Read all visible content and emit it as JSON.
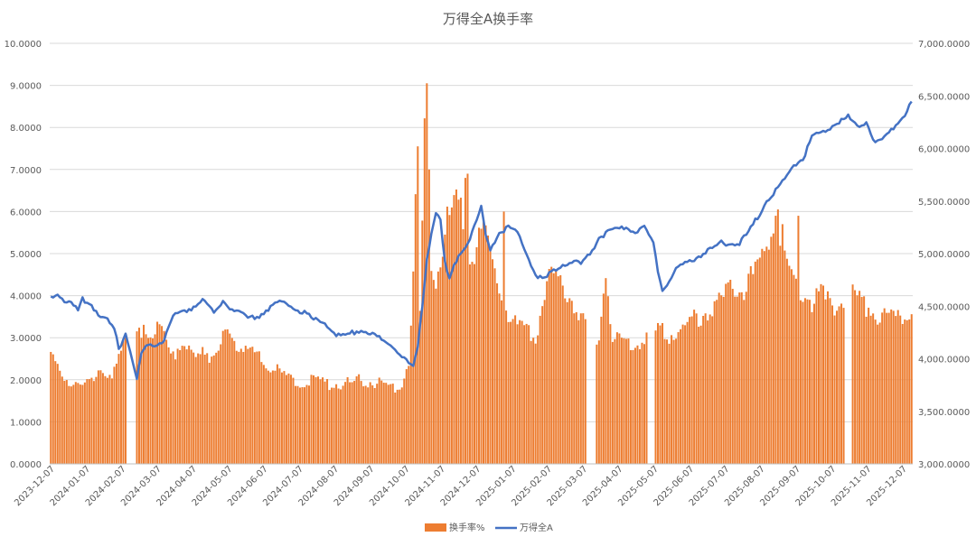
{
  "chart_data": {
    "type": "bar+line",
    "title": "万得全A换手率",
    "x_tick_labels": [
      "2023-12-07",
      "2024-01-07",
      "2024-02-07",
      "2024-03-07",
      "2024-04-07",
      "2024-05-07",
      "2024-06-07",
      "2024-07-07",
      "2024-08-07",
      "2024-09-07",
      "2024-10-07",
      "2024-11-07",
      "2024-12-07",
      "2025-01-07",
      "2025-02-07",
      "2025-03-07",
      "2025-04-07",
      "2025-05-07",
      "2025-06-07",
      "2025-07-07",
      "2025-08-07",
      "2025-09-07",
      "2025-10-07",
      "2025-11-07",
      "2025-12-07"
    ],
    "y_left": {
      "min": 0,
      "max": 10,
      "step": 1,
      "tick_labels": [
        "0.0000",
        "1.0000",
        "2.0000",
        "3.0000",
        "4.0000",
        "5.0000",
        "6.0000",
        "7.0000",
        "8.0000",
        "9.0000",
        "10.0000"
      ]
    },
    "y_right": {
      "min": 3000,
      "max": 7000,
      "step": 500,
      "tick_labels": [
        "3,000.0000",
        "3,500.0000",
        "4,000.0000",
        "4,500.0000",
        "5,000.0000",
        "5,500.0000",
        "6,000.0000",
        "6,500.0000",
        "7,000.0000"
      ]
    },
    "grid": true,
    "legend_position": "bottom",
    "series": [
      {
        "name": "换手率%",
        "kind": "bar",
        "axis": "left",
        "color": "#ED7D31",
        "keypoints": [
          [
            0,
            2.5
          ],
          [
            6,
            2.1
          ],
          [
            12,
            1.8
          ],
          [
            18,
            2.0
          ],
          [
            22,
            2.4
          ],
          [
            27,
            2.0
          ],
          [
            31,
            2.6
          ],
          [
            36,
            3.5
          ],
          [
            45,
            2.8
          ],
          [
            48,
            3.6
          ],
          [
            52,
            2.9
          ],
          [
            56,
            2.6
          ],
          [
            62,
            2.7
          ],
          [
            67,
            2.8
          ],
          [
            72,
            2.4
          ],
          [
            78,
            3.2
          ],
          [
            85,
            2.7
          ],
          [
            92,
            2.5
          ],
          [
            100,
            2.2
          ],
          [
            108,
            1.9
          ],
          [
            115,
            2.0
          ],
          [
            122,
            1.9
          ],
          [
            130,
            1.9
          ],
          [
            138,
            2.0
          ],
          [
            145,
            1.9
          ],
          [
            150,
            1.8
          ],
          [
            155,
            1.9
          ],
          [
            158,
            2.5
          ],
          [
            160,
            4.5
          ],
          [
            162,
            7.5
          ],
          [
            163,
            3.5
          ],
          [
            165,
            8.0
          ],
          [
            167,
            5.0
          ],
          [
            170,
            4.5
          ],
          [
            175,
            5.8
          ],
          [
            180,
            6.2
          ],
          [
            185,
            5.0
          ],
          [
            188,
            5.2
          ],
          [
            192,
            5.6
          ],
          [
            195,
            4.8
          ],
          [
            200,
            3.8
          ],
          [
            205,
            3.3
          ],
          [
            210,
            3.1
          ],
          [
            214,
            3.0
          ],
          [
            218,
            4.2
          ],
          [
            222,
            4.5
          ],
          [
            227,
            4.2
          ],
          [
            232,
            3.8
          ],
          [
            236,
            3.3
          ],
          [
            242,
            3.0
          ],
          [
            245,
            4.6
          ],
          [
            248,
            2.9
          ],
          [
            254,
            2.9
          ],
          [
            258,
            2.8
          ],
          [
            264,
            3.2
          ],
          [
            270,
            3.1
          ],
          [
            276,
            3.1
          ],
          [
            282,
            3.3
          ],
          [
            288,
            3.6
          ],
          [
            294,
            3.7
          ],
          [
            300,
            4.2
          ],
          [
            306,
            4.2
          ],
          [
            312,
            4.6
          ],
          [
            316,
            5.2
          ],
          [
            320,
            5.6
          ],
          [
            324,
            5.0
          ],
          [
            328,
            4.4
          ],
          [
            332,
            4.1
          ],
          [
            336,
            3.9
          ],
          [
            340,
            4.0
          ],
          [
            344,
            3.8
          ],
          [
            348,
            3.8
          ],
          [
            352,
            4.0
          ],
          [
            356,
            4.0
          ],
          [
            360,
            3.8
          ],
          [
            364,
            3.6
          ],
          [
            368,
            3.5
          ],
          [
            372,
            3.4
          ],
          [
            376,
            3.6
          ],
          [
            380,
            3.6
          ]
        ],
        "gaps": [
          [
            34,
            37
          ],
          [
            237,
            240
          ],
          [
            264,
            266
          ],
          [
            351,
            353
          ]
        ],
        "spikes": [
          [
            162,
            7.55
          ],
          [
            166,
            9.05
          ],
          [
            167,
            7.0
          ],
          [
            183,
            6.8
          ],
          [
            184,
            6.9
          ],
          [
            200,
            6.0
          ],
          [
            318,
            5.4
          ],
          [
            320,
            5.9
          ],
          [
            321,
            6.05
          ],
          [
            323,
            5.7
          ],
          [
            330,
            5.9
          ]
        ]
      },
      {
        "name": "万得全A",
        "kind": "line",
        "axis": "right",
        "color": "#4472C4",
        "keypoints": [
          [
            0,
            4580
          ],
          [
            3,
            4630
          ],
          [
            6,
            4560
          ],
          [
            10,
            4500
          ],
          [
            12,
            4450
          ],
          [
            14,
            4560
          ],
          [
            18,
            4510
          ],
          [
            22,
            4400
          ],
          [
            25,
            4360
          ],
          [
            28,
            4270
          ],
          [
            30,
            4100
          ],
          [
            33,
            4240
          ],
          [
            36,
            4000
          ],
          [
            38,
            3800
          ],
          [
            40,
            4050
          ],
          [
            42,
            4120
          ],
          [
            46,
            4140
          ],
          [
            50,
            4180
          ],
          [
            52,
            4320
          ],
          [
            55,
            4420
          ],
          [
            58,
            4450
          ],
          [
            62,
            4480
          ],
          [
            66,
            4560
          ],
          [
            70,
            4500
          ],
          [
            72,
            4420
          ],
          [
            76,
            4550
          ],
          [
            80,
            4470
          ],
          [
            84,
            4420
          ],
          [
            88,
            4380
          ],
          [
            92,
            4410
          ],
          [
            96,
            4480
          ],
          [
            100,
            4530
          ],
          [
            104,
            4540
          ],
          [
            108,
            4470
          ],
          [
            112,
            4440
          ],
          [
            116,
            4370
          ],
          [
            120,
            4360
          ],
          [
            124,
            4280
          ],
          [
            128,
            4200
          ],
          [
            132,
            4240
          ],
          [
            136,
            4270
          ],
          [
            140,
            4260
          ],
          [
            144,
            4210
          ],
          [
            148,
            4150
          ],
          [
            152,
            4110
          ],
          [
            154,
            4050
          ],
          [
            158,
            3950
          ],
          [
            160,
            3920
          ],
          [
            162,
            4100
          ],
          [
            164,
            4500
          ],
          [
            166,
            4950
          ],
          [
            168,
            5200
          ],
          [
            170,
            5400
          ],
          [
            172,
            5300
          ],
          [
            174,
            4900
          ],
          [
            176,
            4750
          ],
          [
            180,
            5000
          ],
          [
            184,
            5100
          ],
          [
            188,
            5300
          ],
          [
            190,
            5450
          ],
          [
            192,
            5150
          ],
          [
            194,
            5050
          ],
          [
            198,
            5200
          ],
          [
            202,
            5250
          ],
          [
            206,
            5200
          ],
          [
            210,
            5000
          ],
          [
            214,
            4800
          ],
          [
            218,
            4750
          ],
          [
            222,
            4850
          ],
          [
            226,
            4900
          ],
          [
            230,
            4920
          ],
          [
            234,
            4900
          ],
          [
            238,
            5000
          ],
          [
            242,
            5150
          ],
          [
            246,
            5200
          ],
          [
            250,
            5230
          ],
          [
            254,
            5250
          ],
          [
            258,
            5200
          ],
          [
            262,
            5250
          ],
          [
            266,
            5100
          ],
          [
            268,
            4850
          ],
          [
            270,
            4650
          ],
          [
            272,
            4700
          ],
          [
            276,
            4850
          ],
          [
            280,
            4900
          ],
          [
            284,
            4950
          ],
          [
            288,
            5000
          ],
          [
            292,
            5050
          ],
          [
            296,
            5100
          ],
          [
            300,
            5100
          ],
          [
            304,
            5100
          ],
          [
            308,
            5200
          ],
          [
            312,
            5350
          ],
          [
            316,
            5500
          ],
          [
            320,
            5600
          ],
          [
            324,
            5700
          ],
          [
            328,
            5850
          ],
          [
            332,
            5900
          ],
          [
            336,
            6100
          ],
          [
            340,
            6150
          ],
          [
            344,
            6200
          ],
          [
            348,
            6250
          ],
          [
            352,
            6300
          ],
          [
            356,
            6200
          ],
          [
            360,
            6250
          ],
          [
            364,
            6050
          ],
          [
            368,
            6100
          ],
          [
            372,
            6200
          ],
          [
            376,
            6300
          ],
          [
            380,
            6430
          ]
        ]
      }
    ],
    "n_points": 381
  }
}
